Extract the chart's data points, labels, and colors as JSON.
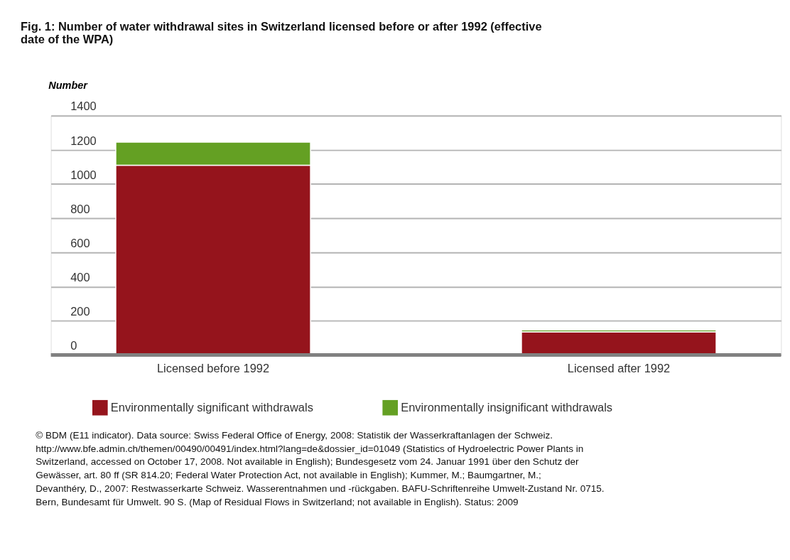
{
  "chart_data": {
    "type": "bar",
    "title": "Fig. 1: Number of water withdrawal sites in Switzerland licensed before or after 1992 (effective date of the WPA)",
    "ylabel": "Number",
    "categories": [
      "Licensed before 1992",
      "Licensed after 1992"
    ],
    "stacked": true,
    "series": [
      {
        "name": "Environmentally significant withdrawals",
        "color": "#95141c",
        "values": [
          1110,
          135
        ]
      },
      {
        "name": "Environmentally insignificant withdrawals",
        "color": "#64a023",
        "values": [
          135,
          12
        ]
      }
    ],
    "ylim": [
      0,
      1400
    ],
    "yticks": [
      0,
      200,
      400,
      600,
      800,
      1000,
      1200,
      1400
    ],
    "grid": "y",
    "legend": "bottom",
    "annotations": [
      "© BDM (E11 indicator). Data source: Swiss Federal Office of Energy, 2008: Statistik der Wasserkraftanlagen der Schweiz. http://www.bfe.admin.ch/themen/00490/00491/index.html?lang=de&dossier_id=01049 (Statistics of Hydroelectric Power Plants in Switzerland, accessed on October 17, 2008. Not available in English); Bundesgesetz vom 24. Januar 1991 über den Schutz der Gewässer, art. 80 ff (SR 814.20; Federal Water Protection Act, not available in English); Kummer, M.; Baumgartner, M.; Devanthéry, D., 2007: Restwasserkarte Schweiz. Wasserentnahmen und -rückgaben. BAFU-Schriftenreihe Umwelt-Zustand Nr. 0715. Bern, Bundesamt für Umwelt. 90 S. (Map of Residual Flows in Switzerland; not available in English). Status: 2009"
    ]
  }
}
